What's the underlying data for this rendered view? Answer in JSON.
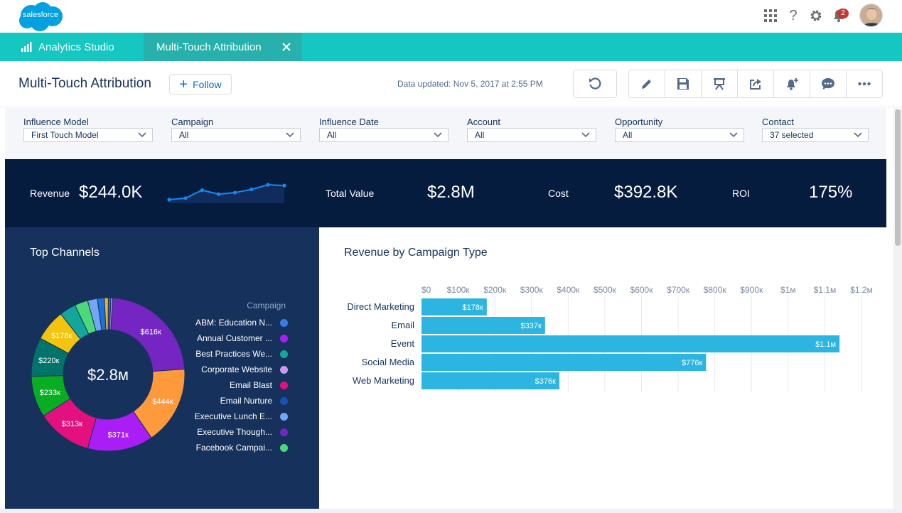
{
  "header": {
    "logo_text": "salesforce",
    "icons": [
      "app-launcher-icon",
      "help-icon",
      "settings-icon",
      "notifications-icon"
    ],
    "notification_count": "2"
  },
  "nav": {
    "app_name": "Analytics Studio",
    "tab_label": "Multi-Touch Attribution"
  },
  "dashboard": {
    "title": "Multi-Touch Attribution",
    "follow_label": "Follow",
    "updated_text": "Data updated: Nov 5, 2017 at 2:55 PM",
    "toolbar_icons": [
      "undo-icon",
      "edit-icon",
      "save-icon",
      "present-icon",
      "share-icon",
      "notify-icon",
      "comment-icon",
      "more-icon"
    ]
  },
  "filters": [
    {
      "label": "Influence Model",
      "value": "First Touch Model"
    },
    {
      "label": "Campaign",
      "value": "All"
    },
    {
      "label": "Influence Date",
      "value": "All"
    },
    {
      "label": "Account",
      "value": "All"
    },
    {
      "label": "Opportunity",
      "value": "All"
    },
    {
      "label": "Contact",
      "value": "37 selected"
    }
  ],
  "kpis": {
    "revenue_label": "Revenue",
    "revenue_value": "$244.0K",
    "total_value_label": "Total Value",
    "total_value": "$2.8M",
    "cost_label": "Cost",
    "cost_value": "$392.8K",
    "roi_label": "ROI",
    "roi_value": "175%"
  },
  "colors": {
    "nav": "#16c6c0",
    "kpi_bg": "#061c3f",
    "panel_bg": "#16325c",
    "bar": "#2bb5e0",
    "sparkline": "#1589ee"
  },
  "chart_data": [
    {
      "type": "line",
      "title": "",
      "x": [
        1,
        2,
        3,
        4,
        5,
        6,
        7,
        8
      ],
      "values": [
        0,
        2,
        12,
        7,
        9,
        13,
        19,
        18
      ],
      "axes_shown": false
    },
    {
      "type": "pie",
      "title": "Top Channels",
      "center_label": "$2.8м",
      "legend_title": "Campaign",
      "legend_position": "right",
      "slices": [
        {
          "label": "$616к",
          "value": 616,
          "color": "#7526c2"
        },
        {
          "label": "$444к",
          "value": 444,
          "color": "#ff9a3c"
        },
        {
          "label": "$371к",
          "value": 371,
          "color": "#a81ef5"
        },
        {
          "label": "$313к",
          "value": 313,
          "color": "#e3117f"
        },
        {
          "label": "$233к",
          "value": 233,
          "color": "#08ad22"
        },
        {
          "label": "$220к",
          "value": 220,
          "color": "#02736a"
        },
        {
          "label": "$178к",
          "value": 178,
          "color": "#f2c40e"
        },
        {
          "label": "",
          "value": 93,
          "color": "#13a69b"
        },
        {
          "label": "",
          "value": 75,
          "color": "#4bd97a"
        },
        {
          "label": "",
          "value": 55,
          "color": "#74a7f2"
        },
        {
          "label": "",
          "value": 40,
          "color": "#1e6fe0"
        },
        {
          "label": "",
          "value": 22,
          "color": "#f5b800"
        },
        {
          "label": "",
          "value": 14,
          "color": "#2b67d6"
        },
        {
          "label": "",
          "value": 10,
          "color": "#c89aee"
        }
      ],
      "legend": [
        {
          "name": "ABM: Education N...",
          "color": "#3a7be8"
        },
        {
          "name": "Annual Customer ...",
          "color": "#a81ef5"
        },
        {
          "name": "Best Practices We...",
          "color": "#13a69b"
        },
        {
          "name": "Corporate Website",
          "color": "#c89aee"
        },
        {
          "name": "Email Blast",
          "color": "#e3117f"
        },
        {
          "name": "Email Nurture",
          "color": "#1b4fb5"
        },
        {
          "name": "Executive Lunch E...",
          "color": "#74a7f2"
        },
        {
          "name": "Executive Though...",
          "color": "#7526c2"
        },
        {
          "name": "Facebook Campai...",
          "color": "#4bd97a"
        }
      ]
    },
    {
      "type": "bar",
      "orientation": "horizontal",
      "title": "Revenue by Campaign Type",
      "categories": [
        "Direct Marketing",
        "Email",
        "Event",
        "Social Media",
        "Web Marketing"
      ],
      "values": [
        178000,
        337000,
        1140000,
        776000,
        376000
      ],
      "value_labels": [
        "$178к",
        "$337к",
        "$1.1м",
        "$776к",
        "$376к"
      ],
      "xlim": [
        0,
        1200000
      ],
      "x_ticks": [
        "$0",
        "$100к",
        "$200к",
        "$300к",
        "$400к",
        "$500к",
        "$600к",
        "$700к",
        "$800к",
        "$900к",
        "$1м",
        "$1.1м",
        "$1.2м"
      ],
      "grid": true
    }
  ]
}
